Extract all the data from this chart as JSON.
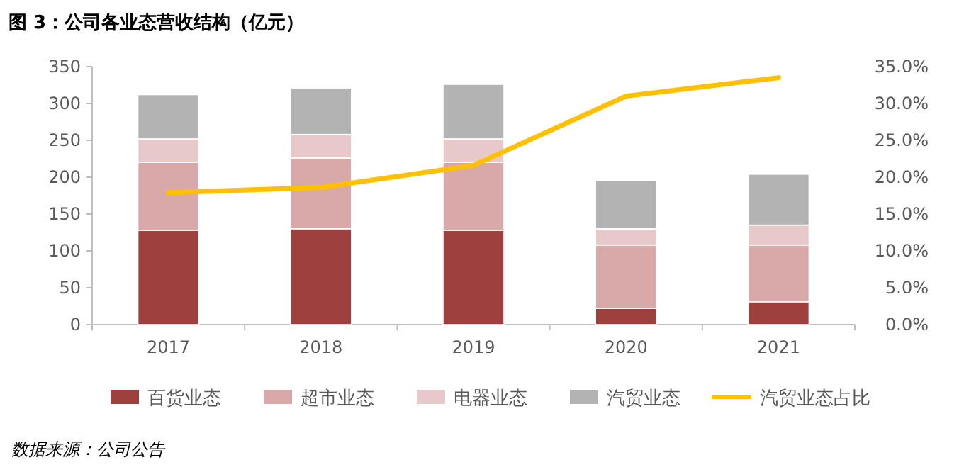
{
  "chart_data": {
    "type": "bar",
    "stacked": true,
    "title": "图 3：公司各业态营收结构（亿元）",
    "categories": [
      "2017",
      "2018",
      "2019",
      "2020",
      "2021"
    ],
    "series": [
      {
        "name": "百货业态",
        "color": "#9e403d",
        "values": [
          128,
          130,
          128,
          22,
          31
        ]
      },
      {
        "name": "超市业态",
        "color": "#d9a8a8",
        "values": [
          92,
          96,
          92,
          86,
          77
        ]
      },
      {
        "name": "电器业态",
        "color": "#e8c9c9",
        "values": [
          32,
          32,
          32,
          22,
          27
        ]
      },
      {
        "name": "汽贸业态",
        "color": "#b3b3b3",
        "values": [
          60,
          63,
          74,
          65,
          69
        ]
      },
      {
        "name": "汽贸业态占比",
        "type": "line",
        "axis": "y2",
        "color": "#ffc000",
        "values": [
          17.9,
          18.6,
          21.6,
          31.0,
          33.5
        ]
      }
    ],
    "ylim": [
      0,
      350
    ],
    "yticks": [
      0,
      50,
      100,
      150,
      200,
      250,
      300,
      350
    ],
    "y2lim": [
      0,
      35
    ],
    "y2ticks": [
      {
        "value": 0,
        "label": "0.0%"
      },
      {
        "value": 5,
        "label": "5.0%"
      },
      {
        "value": 10,
        "label": "10.0%"
      },
      {
        "value": 15,
        "label": "15.0%"
      },
      {
        "value": 20,
        "label": "20.0%"
      },
      {
        "value": 25,
        "label": "25.0%"
      },
      {
        "value": 30,
        "label": "30.0%"
      },
      {
        "value": 35,
        "label": "35.0%"
      }
    ],
    "legend": "bottom",
    "grid": false,
    "annotations": [
      "数据来源：公司公告"
    ]
  }
}
